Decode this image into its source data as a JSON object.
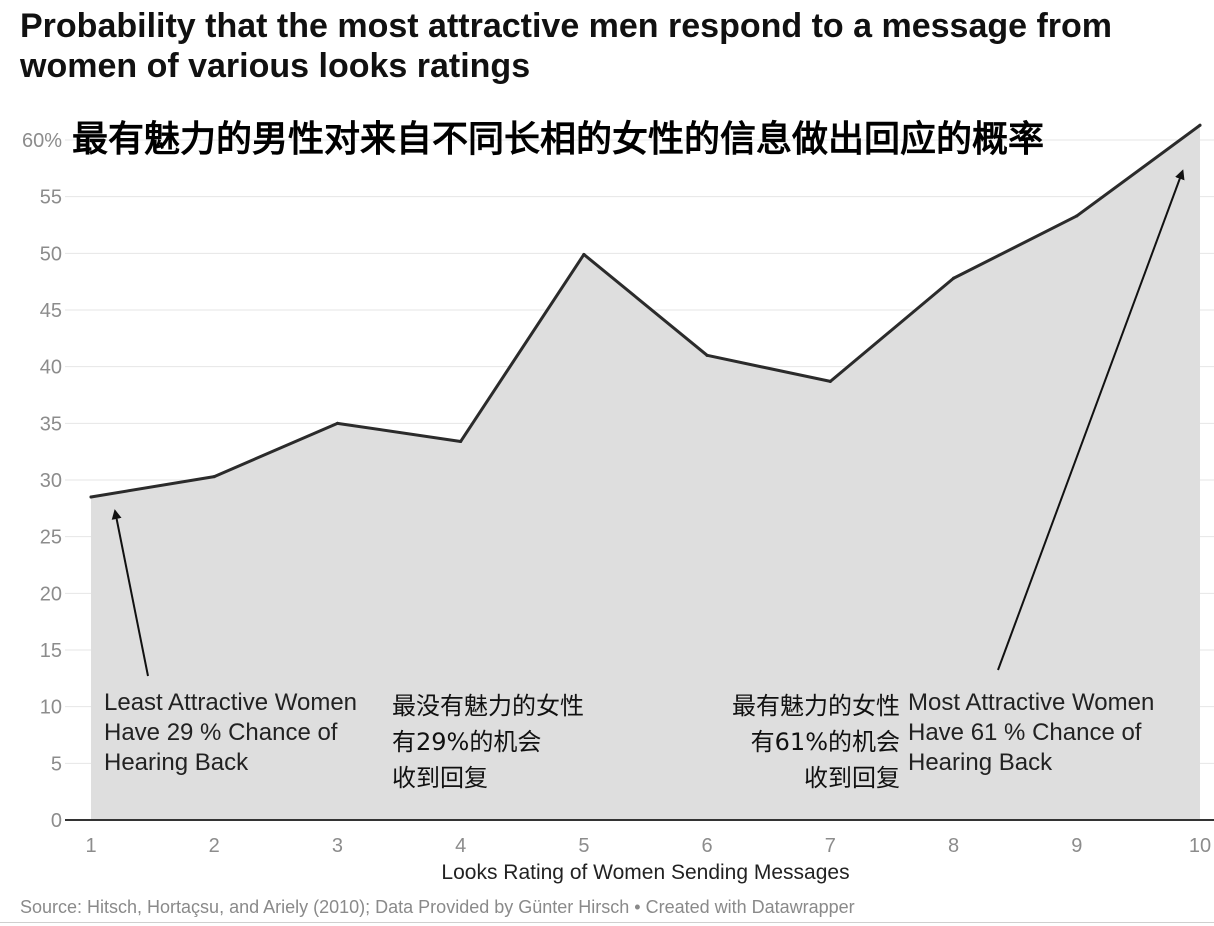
{
  "title": "Probability that the most attractive men respond to a message from women of various looks ratings",
  "title_cn": "最有魅力的男性对来自不同长相的女性的信息做出回应的概率",
  "chart_data": {
    "type": "area",
    "title": "Probability that the most attractive men respond to a message from women of various looks ratings",
    "xlabel": "Looks Rating of Women Sending Messages",
    "ylabel": "",
    "x": [
      1,
      2,
      3,
      4,
      5,
      6,
      7,
      8,
      9,
      10
    ],
    "values": [
      28.5,
      30.3,
      35.0,
      33.4,
      49.9,
      41.0,
      38.7,
      47.8,
      53.3,
      61.3
    ],
    "xlim": [
      1,
      10
    ],
    "ylim": [
      0,
      60
    ],
    "y_ticks": [
      {
        "value": 0,
        "label": "0"
      },
      {
        "value": 5,
        "label": "5"
      },
      {
        "value": 10,
        "label": "10"
      },
      {
        "value": 15,
        "label": "15"
      },
      {
        "value": 20,
        "label": "20"
      },
      {
        "value": 25,
        "label": "25"
      },
      {
        "value": 30,
        "label": "30"
      },
      {
        "value": 35,
        "label": "35"
      },
      {
        "value": 40,
        "label": "40"
      },
      {
        "value": 45,
        "label": "45"
      },
      {
        "value": 50,
        "label": "50"
      },
      {
        "value": 55,
        "label": "55"
      },
      {
        "value": 60,
        "label": "60%"
      }
    ],
    "x_ticks": [
      "1",
      "2",
      "3",
      "4",
      "5",
      "6",
      "7",
      "8",
      "9",
      "10"
    ],
    "grid": true,
    "colors": {
      "area": "#dedede",
      "line": "#2b2b2b",
      "grid": "#e6e6e6",
      "axis": "#333333"
    },
    "annotations": [
      {
        "name": "least-attractive",
        "lines": [
          "Least Attractive Women",
          "Have 29 % Chance of",
          "Hearing Back"
        ],
        "target": [
          1.2,
          27
        ]
      },
      {
        "name": "most-attractive",
        "lines": [
          "Most Attractive Women",
          "Have 61 % Chance of",
          "Hearing Back"
        ],
        "target": [
          9.85,
          57
        ]
      }
    ]
  },
  "annotations_cn": {
    "left": [
      "最没有魅力的女性",
      "有29%的机会",
      "收到回复"
    ],
    "right": [
      "最有魅力的女性",
      "有61%的机会",
      "收到回复"
    ]
  },
  "source": "Source: Hitsch, Hortaçsu, and Ariely (2010); Data Provided by Günter Hirsch • Created with Datawrapper"
}
